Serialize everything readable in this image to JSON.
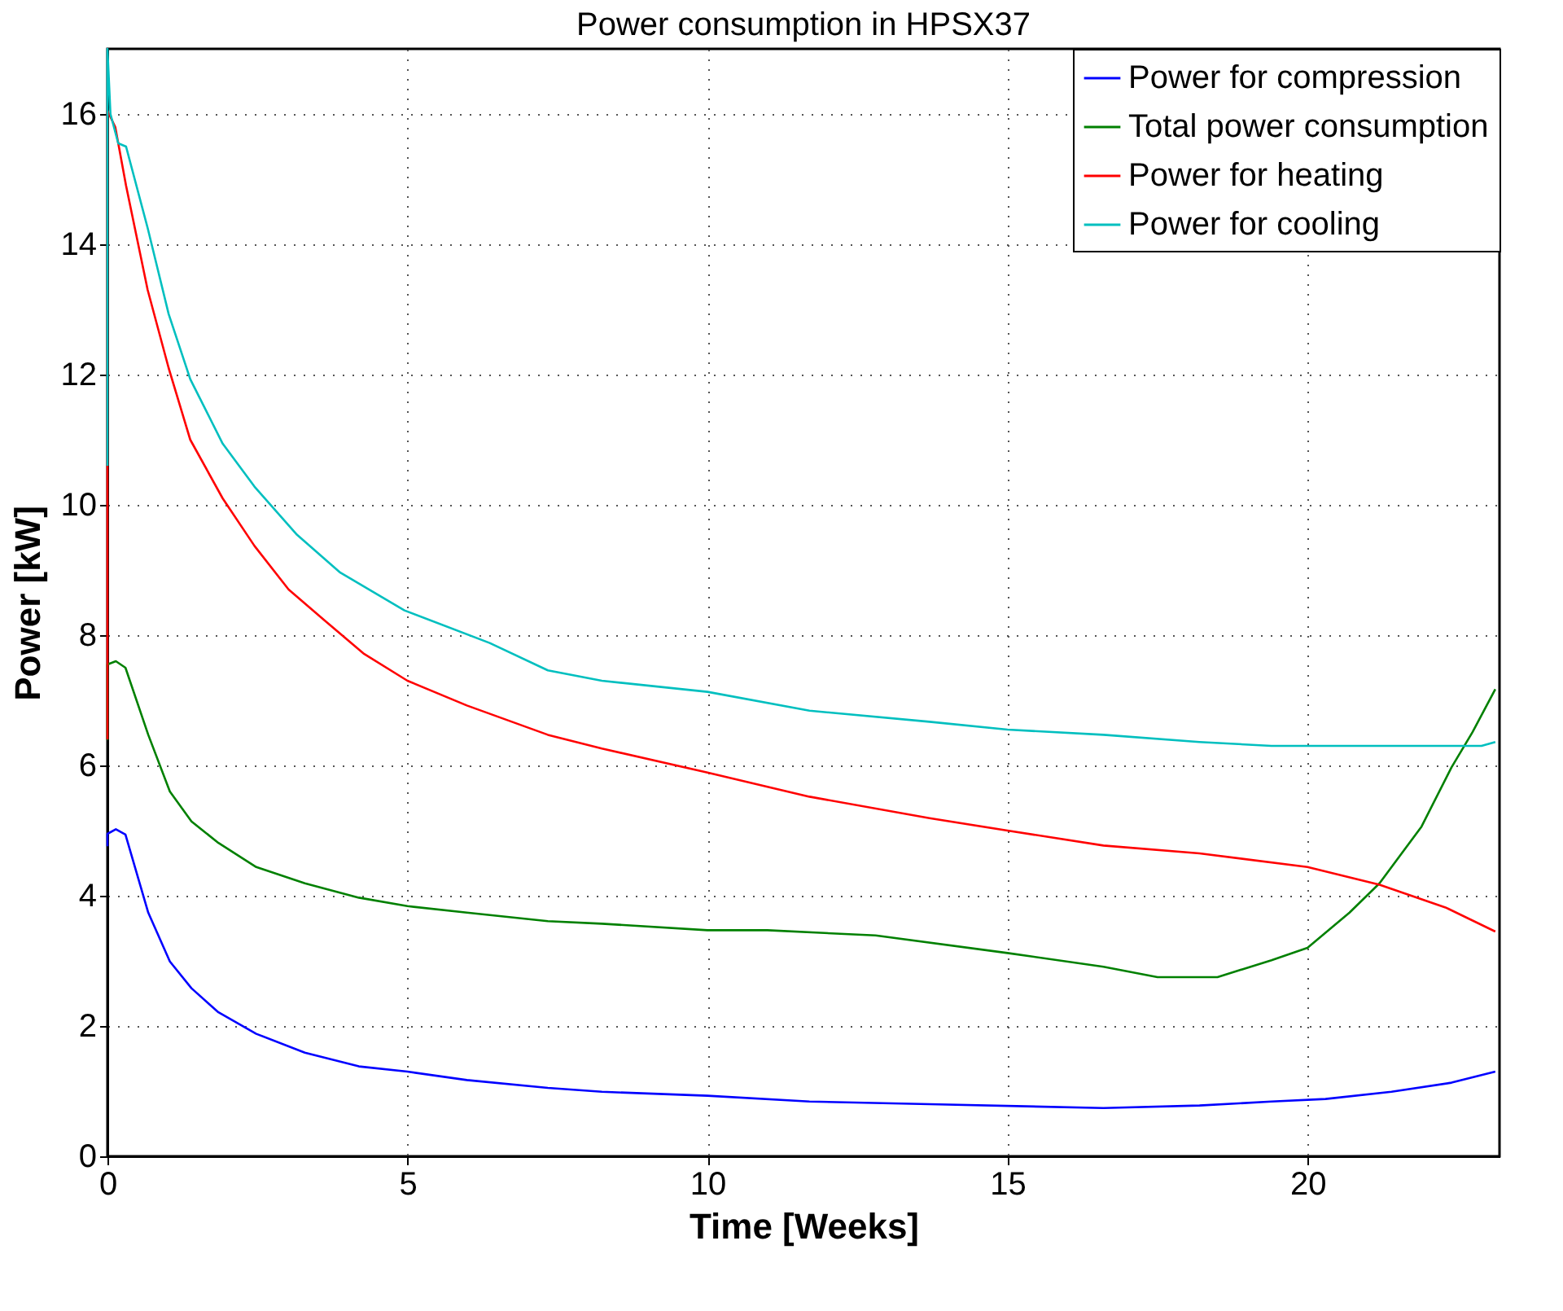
{
  "chart_data": {
    "type": "line",
    "title": "Power consumption in HPSX37",
    "xlabel": "Time [Weeks]",
    "ylabel": "Power [kW]",
    "xlim": [
      0,
      23.2
    ],
    "ylim": [
      0,
      17
    ],
    "xticks": [
      0,
      5,
      10,
      15,
      20
    ],
    "yticks": [
      0,
      2,
      4,
      6,
      8,
      10,
      12,
      14,
      16
    ],
    "grid": true,
    "legend": "top right",
    "line_style": "solid",
    "marker": "none",
    "series": [
      {
        "name": "Power for compression",
        "color": "#0000ff",
        "x": [
          0,
          0,
          0.14,
          0.3,
          0.68,
          1.04,
          1.4,
          1.85,
          2.48,
          3.29,
          4.19,
          5.0,
          5.99,
          7.34,
          8.24,
          10.0,
          11.7,
          13.7,
          16.6,
          18.2,
          19.4,
          20.3,
          21.4,
          22.4,
          23.13
        ],
        "values": [
          4.76,
          4.95,
          5.02,
          4.94,
          3.74,
          2.99,
          2.58,
          2.21,
          1.88,
          1.59,
          1.38,
          1.3,
          1.17,
          1.05,
          0.99,
          0.93,
          0.84,
          0.8,
          0.74,
          0.78,
          0.84,
          0.88,
          0.99,
          1.13,
          1.3
        ]
      },
      {
        "name": "Total power consumption",
        "color": "#008000",
        "x": [
          0,
          0,
          0.14,
          0.3,
          0.68,
          1.04,
          1.4,
          1.85,
          2.48,
          3.29,
          4.19,
          5.0,
          5.99,
          7.34,
          8.24,
          10.0,
          11.0,
          12.8,
          15.0,
          16.6,
          17.5,
          18.5,
          19.4,
          20.0,
          20.7,
          21.2,
          21.9,
          22.4,
          22.75,
          23.13
        ],
        "values": [
          6.39,
          7.55,
          7.6,
          7.5,
          6.47,
          5.6,
          5.14,
          4.81,
          4.44,
          4.19,
          3.97,
          3.84,
          3.74,
          3.61,
          3.57,
          3.47,
          3.47,
          3.39,
          3.12,
          2.91,
          2.75,
          2.75,
          3.01,
          3.2,
          3.74,
          4.19,
          5.06,
          5.97,
          6.51,
          7.17
        ]
      },
      {
        "name": "Power for heating",
        "color": "#ff0000",
        "x": [
          0,
          0,
          0.13,
          0.31,
          0.67,
          1.02,
          1.38,
          1.92,
          2.45,
          3.02,
          3.74,
          4.28,
          5.0,
          5.99,
          7.34,
          8.24,
          10.0,
          11.7,
          13.7,
          15.0,
          16.6,
          18.2,
          20.0,
          21.2,
          22.3,
          23.13
        ],
        "values": [
          6.4,
          16.05,
          15.8,
          14.9,
          13.3,
          12.1,
          11.0,
          10.1,
          9.37,
          8.7,
          8.13,
          7.71,
          7.3,
          6.92,
          6.47,
          6.26,
          5.89,
          5.52,
          5.19,
          5.0,
          4.77,
          4.65,
          4.44,
          4.17,
          3.82,
          3.45
        ]
      },
      {
        "name": "Power for cooling",
        "color": "#00bfbf",
        "x": [
          0,
          0,
          0.05,
          0.18,
          0.31,
          0.67,
          1.02,
          1.38,
          1.92,
          2.45,
          3.16,
          3.88,
          4.95,
          6.37,
          7.34,
          8.24,
          10.0,
          11.7,
          13.7,
          15.0,
          16.6,
          18.2,
          19.4,
          21.2,
          22.9,
          23.13
        ],
        "values": [
          10.6,
          17.0,
          16.0,
          15.55,
          15.5,
          14.25,
          12.93,
          11.93,
          10.94,
          10.28,
          9.54,
          8.96,
          8.38,
          7.88,
          7.46,
          7.3,
          7.13,
          6.84,
          6.67,
          6.55,
          6.47,
          6.36,
          6.3,
          6.3,
          6.3,
          6.36
        ]
      }
    ]
  }
}
